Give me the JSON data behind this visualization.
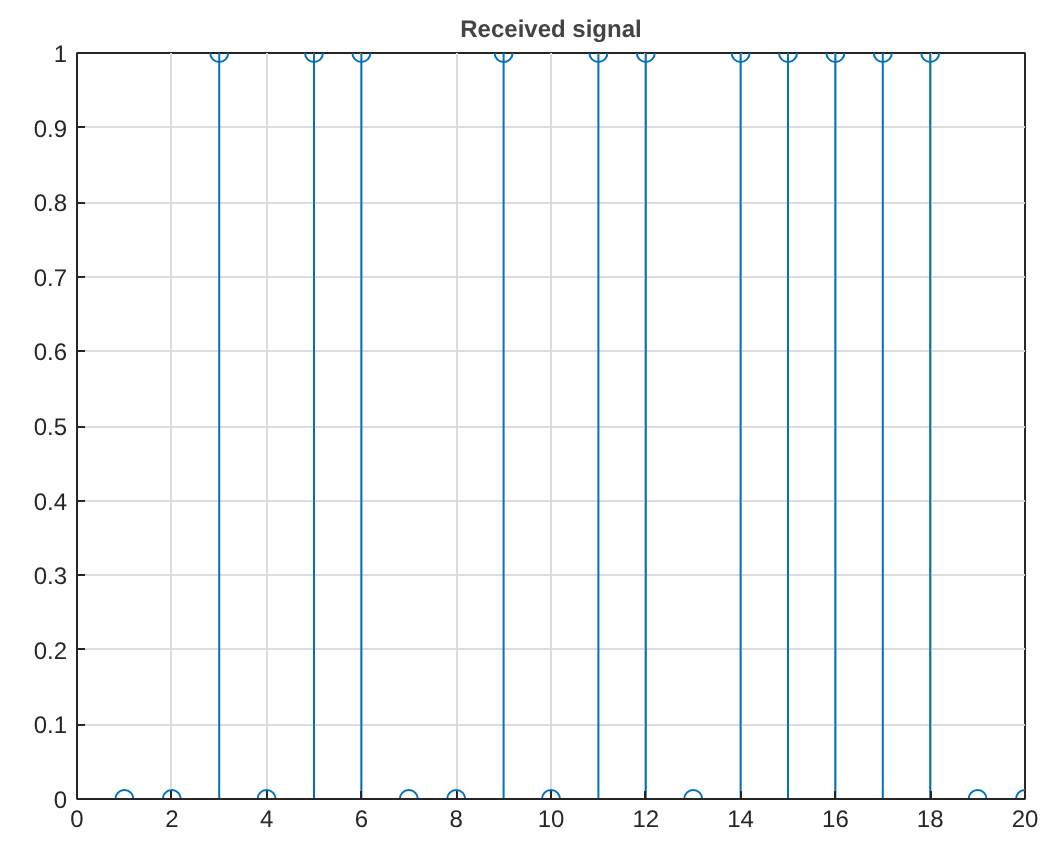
{
  "chart_data": {
    "type": "lollipop",
    "title": "Received signal",
    "x": [
      1,
      2,
      3,
      4,
      5,
      6,
      7,
      8,
      9,
      10,
      11,
      12,
      13,
      14,
      15,
      16,
      17,
      18,
      19,
      20
    ],
    "values": [
      0,
      0,
      1,
      0,
      1,
      1,
      0,
      0,
      1,
      0,
      1,
      1,
      0,
      1,
      1,
      1,
      1,
      1,
      0,
      0
    ],
    "color": "#0072bd",
    "marker": "circle",
    "grid": true,
    "xlim": [
      0,
      20
    ],
    "xticks": [
      0,
      2,
      4,
      6,
      8,
      10,
      12,
      14,
      16,
      18,
      20
    ],
    "ylim": [
      0,
      1
    ],
    "yticks": [
      0,
      0.1,
      0.2,
      0.3,
      0.4,
      0.5,
      0.6,
      0.7,
      0.8,
      0.9,
      1
    ]
  }
}
